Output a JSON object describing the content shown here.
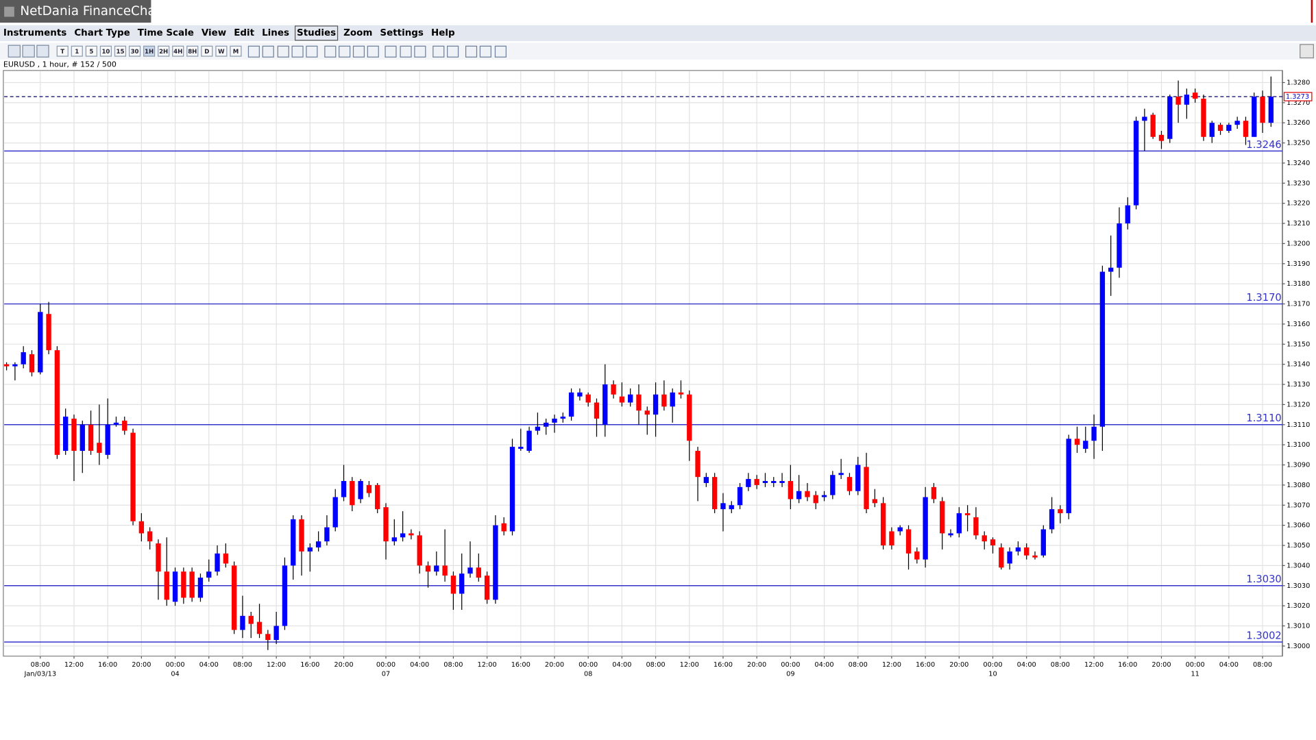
{
  "window": {
    "title": "NetDania FinanceChart"
  },
  "menu": [
    "Instruments",
    "Chart Type",
    "Time Scale",
    "View",
    "Edit",
    "Lines",
    "Studies",
    "Zoom",
    "Settings",
    "Help"
  ],
  "toolbar": {
    "timescales": [
      "T",
      "1",
      "5",
      "10",
      "15",
      "30",
      "1H",
      "2H",
      "4H",
      "8H",
      "D",
      "W",
      "M"
    ]
  },
  "chart_data": {
    "type": "candlestick",
    "info": "EURUSD , 1 hour, # 152 / 500",
    "up_color": "#0000ff",
    "down_color": "#ff0000",
    "wick_color": "#000000",
    "level_color": "#3333cc",
    "grid": true,
    "ylim": [
      1.2995,
      1.3286
    ],
    "yticks": [
      {
        "value": 1.3,
        "label": "1.3000"
      },
      {
        "value": 1.301,
        "label": "1.3010"
      },
      {
        "value": 1.302,
        "label": "1.3020"
      },
      {
        "value": 1.303,
        "label": "1.3030"
      },
      {
        "value": 1.304,
        "label": "1.3040"
      },
      {
        "value": 1.305,
        "label": "1.3050"
      },
      {
        "value": 1.306,
        "label": "1.3060"
      },
      {
        "value": 1.307,
        "label": "1.3070"
      },
      {
        "value": 1.308,
        "label": "1.3080"
      },
      {
        "value": 1.309,
        "label": "1.3090"
      },
      {
        "value": 1.31,
        "label": "1.3100"
      },
      {
        "value": 1.311,
        "label": "1.3110"
      },
      {
        "value": 1.312,
        "label": "1.3120"
      },
      {
        "value": 1.313,
        "label": "1.3130"
      },
      {
        "value": 1.314,
        "label": "1.3140"
      },
      {
        "value": 1.315,
        "label": "1.3150"
      },
      {
        "value": 1.316,
        "label": "1.3160"
      },
      {
        "value": 1.317,
        "label": "1.3170"
      },
      {
        "value": 1.318,
        "label": "1.3180"
      },
      {
        "value": 1.319,
        "label": "1.3190"
      },
      {
        "value": 1.32,
        "label": "1.3200"
      },
      {
        "value": 1.321,
        "label": "1.3210"
      },
      {
        "value": 1.322,
        "label": "1.3220"
      },
      {
        "value": 1.323,
        "label": "1.3230"
      },
      {
        "value": 1.324,
        "label": "1.3240"
      },
      {
        "value": 1.325,
        "label": "1.3250"
      },
      {
        "value": 1.326,
        "label": "1.3260"
      },
      {
        "value": 1.327,
        "label": "1.3270"
      },
      {
        "value": 1.328,
        "label": "1.3280"
      }
    ],
    "levels": [
      1.3246,
      {
        "value": 1.317,
        "label": "1.3170"
      },
      {
        "value": 1.311,
        "label": "1.3110"
      },
      {
        "value": 1.303,
        "label": "1.3030"
      },
      1.3002
    ],
    "last_price": 1.3273,
    "categories": [
      null,
      null,
      null,
      null,
      "08:00",
      null,
      null,
      null,
      "12:00",
      null,
      null,
      null,
      "16:00",
      null,
      null,
      null,
      "20:00",
      null,
      null,
      null,
      "00:00",
      null,
      null,
      null,
      "04:00",
      null,
      null,
      null,
      "08:00",
      null,
      null,
      null,
      "12:00",
      null,
      null,
      null,
      "16:00",
      null,
      null,
      null,
      "20:00",
      null,
      null,
      null,
      null,
      "00:00",
      null,
      null,
      null,
      "04:00",
      null,
      null,
      null,
      "08:00",
      null,
      null,
      null,
      "12:00",
      null,
      null,
      null,
      "16:00",
      null,
      null,
      null,
      "20:00",
      null,
      null,
      null,
      "00:00",
      null,
      null,
      null,
      "04:00",
      null,
      null,
      null,
      "08:00",
      null,
      null,
      null,
      "12:00",
      null,
      null,
      null,
      "16:00",
      null,
      null,
      null,
      "20:00",
      null,
      null,
      null,
      "00:00",
      null,
      null,
      null,
      "04:00",
      null,
      null,
      null,
      "08:00",
      null,
      null,
      null,
      "12:00",
      null,
      null,
      null,
      "16:00",
      null,
      null,
      null,
      "20:00",
      null,
      null,
      null,
      "00:00",
      null,
      null,
      null,
      "04:00",
      null,
      null,
      null,
      "08:00",
      null,
      null,
      null,
      "12:00",
      null,
      null,
      null,
      "16:00",
      null,
      null,
      null,
      "20:00",
      null,
      null,
      null,
      "00:00",
      null,
      null,
      null,
      "04:00",
      null,
      null,
      null,
      "08:00",
      null
    ],
    "dates": [
      null,
      null,
      null,
      null,
      "Jan/03/13",
      null,
      null,
      null,
      null,
      null,
      null,
      null,
      null,
      null,
      null,
      null,
      null,
      null,
      null,
      null,
      "04",
      null,
      null,
      null,
      null,
      null,
      null,
      null,
      null,
      null,
      null,
      null,
      null,
      null,
      null,
      null,
      null,
      null,
      null,
      null,
      null,
      null,
      null,
      null,
      null,
      "07",
      null,
      null,
      null,
      null,
      null,
      null,
      null,
      null,
      null,
      null,
      null,
      null,
      null,
      null,
      null,
      null,
      null,
      null,
      null,
      null,
      null,
      null,
      null,
      "08",
      null,
      null,
      null,
      null,
      null,
      null,
      null,
      null,
      null,
      null,
      null,
      null,
      null,
      null,
      null,
      null,
      null,
      null,
      null,
      null,
      null,
      null,
      null,
      "09",
      null,
      null,
      null,
      null,
      null,
      null,
      null,
      null,
      null,
      null,
      null,
      null,
      null,
      null,
      null,
      null,
      null,
      null,
      null,
      null,
      null,
      null,
      null,
      "10",
      null,
      null,
      null,
      null,
      null,
      null,
      null,
      null,
      null,
      null,
      null,
      null,
      null,
      null,
      null,
      null,
      null,
      null,
      null,
      null,
      null,
      null,
      null,
      "11",
      null,
      null,
      null,
      null,
      null,
      null,
      null,
      null,
      null
    ],
    "open": [
      1.314,
      1.3139,
      1.314,
      1.3145,
      1.3136,
      1.3165,
      1.3147,
      1.3097,
      1.3113,
      1.3097,
      1.311,
      1.3101,
      1.3095,
      1.311,
      1.3112,
      1.3106,
      1.3062,
      1.3057,
      1.3051,
      1.3037,
      1.3022,
      1.3037,
      1.3037,
      1.3024,
      1.3034,
      1.3037,
      1.3046,
      1.304,
      1.3008,
      1.3015,
      1.3012,
      1.3006,
      1.3003,
      1.301,
      1.304,
      1.3063,
      1.3047,
      1.3049,
      1.3052,
      1.3059,
      1.3074,
      1.3082,
      1.3073,
      1.308,
      1.308,
      1.3069,
      1.3052,
      1.3054,
      1.3056,
      1.3055,
      1.304,
      1.3037,
      1.304,
      1.3035,
      1.3026,
      1.3036,
      1.3039,
      1.3035,
      1.3023,
      1.3061,
      1.3057,
      1.3098,
      1.3097,
      1.3107,
      1.3109,
      1.3111,
      1.3113,
      1.3114,
      1.3124,
      1.3125,
      1.3121,
      1.311,
      1.313,
      1.3124,
      1.3121,
      1.3125,
      1.3117,
      1.3115,
      1.3125,
      1.3119,
      1.3126,
      1.3125,
      1.3097,
      1.3081,
      1.3084,
      1.3068,
      1.3068,
      1.307,
      1.3079,
      1.3083,
      1.3081,
      1.3081,
      1.3081,
      1.3082,
      1.3073,
      1.3077,
      1.3075,
      1.3074,
      1.3075,
      1.3085,
      1.3084,
      1.3077,
      1.3089,
      1.3073,
      1.3071,
      1.3057,
      1.3057,
      1.3058,
      1.3047,
      1.3043,
      1.3079,
      1.3072,
      1.3055,
      1.3056,
      1.3066,
      1.3064,
      1.3055,
      1.3053,
      1.3049,
      1.3041,
      1.3047,
      1.3049,
      1.3045,
      1.3045,
      1.3058,
      1.3068,
      1.3066,
      1.3103,
      1.3098,
      1.3102,
      1.3109,
      1.3186,
      1.3188,
      1.321,
      1.3219,
      1.3261,
      1.3264,
      1.3254,
      1.3252,
      1.3273,
      1.3269,
      1.3275,
      1.3272,
      1.3253,
      1.3259,
      1.3256,
      1.3259,
      1.3261,
      1.3253,
      1.3273,
      1.326
    ],
    "high": [
      1.3141,
      1.3141,
      1.3149,
      1.3147,
      1.317,
      1.3171,
      1.3149,
      1.3118,
      1.3115,
      1.3112,
      1.3117,
      1.312,
      1.3123,
      1.3114,
      1.3114,
      1.3108,
      1.3066,
      1.3059,
      1.3053,
      1.3054,
      1.3039,
      1.3039,
      1.3039,
      1.3036,
      1.3043,
      1.305,
      1.3051,
      1.3042,
      1.3025,
      1.3017,
      1.3021,
      1.3008,
      1.3017,
      1.3044,
      1.3065,
      1.3065,
      1.3051,
      1.3057,
      1.3065,
      1.3078,
      1.309,
      1.3084,
      1.3083,
      1.3082,
      1.3081,
      1.3071,
      1.3063,
      1.3067,
      1.3058,
      1.3057,
      1.3042,
      1.3047,
      1.3058,
      1.3037,
      1.3046,
      1.3052,
      1.3046,
      1.3037,
      1.3065,
      1.3064,
      1.3103,
      1.3108,
      1.3109,
      1.3116,
      1.3113,
      1.3115,
      1.3116,
      1.3128,
      1.3128,
      1.3126,
      1.3123,
      1.314,
      1.3132,
      1.3131,
      1.3128,
      1.313,
      1.3119,
      1.3131,
      1.3132,
      1.3128,
      1.3132,
      1.3127,
      1.3099,
      1.3086,
      1.3086,
      1.3076,
      1.3072,
      1.3081,
      1.3086,
      1.3085,
      1.3086,
      1.3084,
      1.3086,
      1.309,
      1.3085,
      1.3081,
      1.3077,
      1.3077,
      1.3087,
      1.3093,
      1.3086,
      1.3094,
      1.3096,
      1.3078,
      1.3074,
      1.3059,
      1.306,
      1.306,
      1.3049,
      1.3079,
      1.3081,
      1.3074,
      1.3058,
      1.3069,
      1.307,
      1.3069,
      1.3057,
      1.3054,
      1.3051,
      1.3049,
      1.3052,
      1.3051,
      1.3047,
      1.306,
      1.3074,
      1.307,
      1.3105,
      1.3109,
      1.3109,
      1.3115,
      1.3189,
      1.3204,
      1.3218,
      1.3223,
      1.3263,
      1.3267,
      1.3265,
      1.3256,
      1.3274,
      1.3281,
      1.3277,
      1.3277,
      1.3274,
      1.3261,
      1.326,
      1.326,
      1.3263,
      1.3263,
      1.3275,
      1.3276,
      1.3283
    ],
    "low": [
      1.3137,
      1.3132,
      1.3138,
      1.3134,
      1.3135,
      1.3145,
      1.3093,
      1.3095,
      1.3082,
      1.3086,
      1.3095,
      1.309,
      1.3093,
      1.3109,
      1.3105,
      1.306,
      1.3052,
      1.3048,
      1.3023,
      1.302,
      1.302,
      1.3021,
      1.3022,
      1.3022,
      1.3032,
      1.3035,
      1.3039,
      1.3006,
      1.3004,
      1.3004,
      1.3004,
      1.2998,
      1.3001,
      1.3008,
      1.3033,
      1.3035,
      1.3037,
      1.3047,
      1.305,
      1.3057,
      1.3072,
      1.3067,
      1.3071,
      1.3074,
      1.3066,
      1.3043,
      1.305,
      1.3052,
      1.3053,
      1.3036,
      1.3029,
      1.3035,
      1.3032,
      1.3018,
      1.3018,
      1.3034,
      1.3032,
      1.3021,
      1.3021,
      1.3055,
      1.3055,
      1.3097,
      1.3096,
      1.3105,
      1.3105,
      1.3106,
      1.3111,
      1.3112,
      1.3122,
      1.3119,
      1.3104,
      1.3104,
      1.3123,
      1.3119,
      1.3119,
      1.311,
      1.3105,
      1.3104,
      1.3117,
      1.3111,
      1.3123,
      1.3092,
      1.3072,
      1.3079,
      1.3066,
      1.3057,
      1.3066,
      1.3068,
      1.3077,
      1.3078,
      1.3079,
      1.3079,
      1.3079,
      1.3068,
      1.3071,
      1.3072,
      1.3068,
      1.3072,
      1.3073,
      1.3083,
      1.3075,
      1.3075,
      1.3066,
      1.3069,
      1.3048,
      1.3048,
      1.3055,
      1.3038,
      1.3041,
      1.3039,
      1.3071,
      1.3048,
      1.3054,
      1.3054,
      1.3057,
      1.3053,
      1.3048,
      1.3046,
      1.3038,
      1.3038,
      1.3045,
      1.3043,
      1.3043,
      1.3044,
      1.3056,
      1.3061,
      1.3063,
      1.3096,
      1.3096,
      1.3093,
      1.3097,
      1.3174,
      1.3183,
      1.3207,
      1.3217,
      1.3246,
      1.3252,
      1.3247,
      1.325,
      1.326,
      1.3262,
      1.327,
      1.3251,
      1.325,
      1.3254,
      1.3255,
      1.3257,
      1.3249,
      1.3253,
      1.3255,
      1.3258
    ],
    "close": [
      1.3139,
      1.314,
      1.3146,
      1.3136,
      1.3166,
      1.3147,
      1.3095,
      1.3114,
      1.3097,
      1.311,
      1.3097,
      1.3096,
      1.311,
      1.3111,
      1.3107,
      1.3062,
      1.3056,
      1.3052,
      1.3037,
      1.3023,
      1.3037,
      1.3024,
      1.3024,
      1.3034,
      1.3037,
      1.3046,
      1.3041,
      1.3008,
      1.3015,
      1.3011,
      1.3006,
      1.3003,
      1.301,
      1.304,
      1.3063,
      1.3047,
      1.3049,
      1.3052,
      1.3059,
      1.3074,
      1.3082,
      1.307,
      1.3082,
      1.3076,
      1.3068,
      1.3052,
      1.3054,
      1.3056,
      1.3055,
      1.304,
      1.3037,
      1.304,
      1.3035,
      1.3026,
      1.3036,
      1.3039,
      1.3034,
      1.3023,
      1.306,
      1.3057,
      1.3099,
      1.3099,
      1.3107,
      1.3109,
      1.3111,
      1.3113,
      1.3114,
      1.3126,
      1.3126,
      1.3121,
      1.3113,
      1.313,
      1.3125,
      1.3121,
      1.3125,
      1.3117,
      1.3115,
      1.3125,
      1.3119,
      1.3126,
      1.3125,
      1.3102,
      1.3084,
      1.3084,
      1.3068,
      1.3071,
      1.307,
      1.3079,
      1.3083,
      1.308,
      1.3082,
      1.3082,
      1.3082,
      1.3073,
      1.3077,
      1.3074,
      1.3071,
      1.3075,
      1.3085,
      1.3086,
      1.3077,
      1.309,
      1.3068,
      1.3071,
      1.305,
      1.305,
      1.3059,
      1.3046,
      1.3043,
      1.3074,
      1.3073,
      1.3056,
      1.3056,
      1.3066,
      1.3065,
      1.3055,
      1.3052,
      1.305,
      1.3039,
      1.3047,
      1.3049,
      1.3045,
      1.3044,
      1.3058,
      1.3068,
      1.3066,
      1.3103,
      1.31,
      1.3102,
      1.3109,
      1.3186,
      1.3188,
      1.321,
      1.3219,
      1.3261,
      1.3263,
      1.3253,
      1.3251,
      1.3273,
      1.3269,
      1.3274,
      1.3272,
      1.3253,
      1.326,
      1.3256,
      1.3259,
      1.3261,
      1.3253,
      1.3273,
      1.326,
      1.3273
    ]
  }
}
